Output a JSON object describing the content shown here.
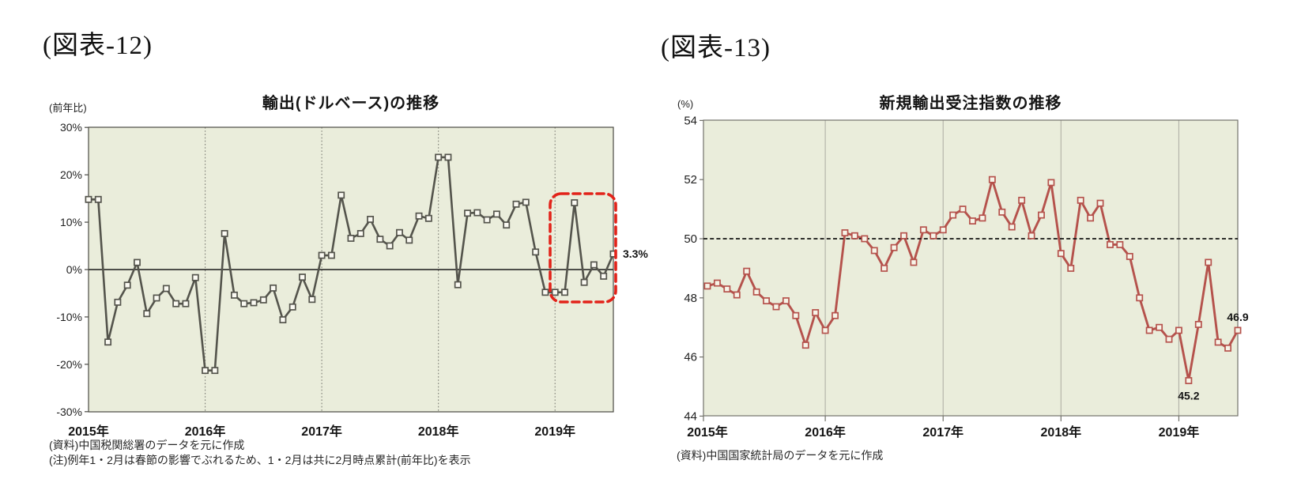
{
  "fig12": {
    "label": "(図表-12)",
    "source_note": "(資料)中国税関総署のデータを元に作成",
    "footnote": "(注)例年1・2月は春節の影響でぶれるため、1・2月は共に2月時点累計(前年比)を表示"
  },
  "fig13": {
    "label": "(図表-13)",
    "source_note": "(資料)中国国家統計局のデータを元に作成"
  },
  "chart_data": [
    {
      "id": "export-usd-yoy",
      "type": "line",
      "title": "輸出(ドルベース)の推移",
      "unit": "(前年比)",
      "frequency": "monthly",
      "x_start_month": "2015-01",
      "x_end_month": "2019-07",
      "x_year_labels": [
        "2015年",
        "2016年",
        "2017年",
        "2018年",
        "2019年"
      ],
      "y_tick_labels": [
        "30%",
        "20%",
        "10%",
        "0%",
        "-10%",
        "-20%",
        "-30%"
      ],
      "y_tick_values": [
        30,
        20,
        10,
        0,
        -10,
        -20,
        -30
      ],
      "ylim": [
        -30,
        30
      ],
      "grid": "vertical-yearly-dotted",
      "zero_line": true,
      "monthly_values": [
        14.8,
        14.8,
        -15.3,
        -6.9,
        -3.3,
        1.5,
        -9.3,
        -6.0,
        -4.0,
        -7.2,
        -7.2,
        -1.7,
        -21.3,
        -21.3,
        7.6,
        -5.4,
        -7.2,
        -7.0,
        -6.4,
        -3.9,
        -10.6,
        -7.9,
        -1.6,
        -6.3,
        3.0,
        3.0,
        15.7,
        6.6,
        7.6,
        10.6,
        6.4,
        5.0,
        7.8,
        6.2,
        11.3,
        10.8,
        23.7,
        23.7,
        -3.2,
        11.9,
        12.0,
        10.5,
        11.7,
        9.4,
        13.8,
        14.2,
        3.7,
        -4.8,
        -4.8,
        -4.8,
        14.1,
        -2.7,
        1.0,
        -1.4,
        3.3
      ],
      "last_point_label": "3.3%",
      "highlight": {
        "style": "red-dashed-rounded-box",
        "from_month": "2019-01",
        "to_month": "2019-07"
      },
      "colors": {
        "line": "#54544c",
        "marker_fill": "#fbfaf3",
        "plot_bg": "#eaeddb",
        "highlight": "#e2231a"
      }
    },
    {
      "id": "new-export-orders-index",
      "type": "line",
      "title": "新規輸出受注指数の推移",
      "unit": "(%)",
      "frequency": "monthly",
      "x_start_month": "2015-01",
      "x_end_month": "2019-07",
      "x_year_labels": [
        "2015年",
        "2016年",
        "2017年",
        "2018年",
        "2019年"
      ],
      "y_tick_labels": [
        "54",
        "52",
        "50",
        "48",
        "46",
        "44"
      ],
      "y_tick_values": [
        54,
        52,
        50,
        48,
        46,
        44
      ],
      "ylim": [
        44,
        54
      ],
      "grid": "vertical-yearly-solid",
      "reference_line_value": 50,
      "monthly_values": [
        48.4,
        48.5,
        48.3,
        48.1,
        48.9,
        48.2,
        47.9,
        47.7,
        47.9,
        47.4,
        46.4,
        47.5,
        46.9,
        47.4,
        50.2,
        50.1,
        50.0,
        49.6,
        49.0,
        49.7,
        50.1,
        49.2,
        50.3,
        50.1,
        50.3,
        50.8,
        51.0,
        50.6,
        50.7,
        52.0,
        50.9,
        50.4,
        51.3,
        50.1,
        50.8,
        51.9,
        49.5,
        49.0,
        51.3,
        50.7,
        51.2,
        49.8,
        49.8,
        49.4,
        48.0,
        46.9,
        47.0,
        46.6,
        46.9,
        45.2,
        47.1,
        49.2,
        46.5,
        46.3,
        46.9
      ],
      "annotations": [
        {
          "label": "45.2",
          "month": "2019-02",
          "position": "below"
        },
        {
          "label": "46.9",
          "month": "2019-07",
          "position": "above"
        }
      ],
      "colors": {
        "line": "#b5524c",
        "marker_fill": "#f7f4e8",
        "plot_bg": "#eaeddb"
      }
    }
  ]
}
